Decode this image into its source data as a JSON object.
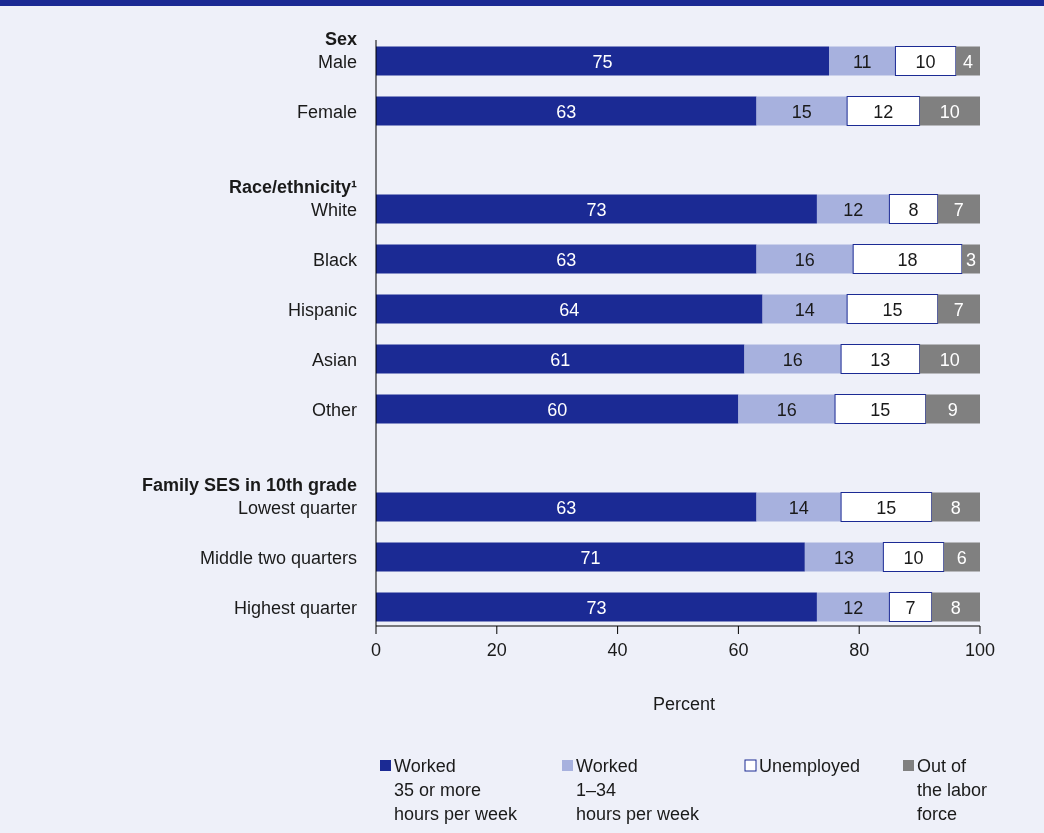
{
  "chart_data": {
    "type": "bar",
    "orientation": "horizontal",
    "stacked": true,
    "xlabel": "Percent",
    "xlim": [
      0,
      100
    ],
    "xticks": [
      0,
      20,
      40,
      60,
      80,
      100
    ],
    "legend": "bottom",
    "data_labels": true,
    "categories": [
      "Sex",
      "Male",
      "Female",
      "Race/ethnicity¹",
      "White",
      "Black",
      "Hispanic",
      "Asian",
      "Other",
      "Family SES in 10th grade",
      "Lowest quarter",
      "Middle two quarters",
      "Highest quarter"
    ],
    "series": [
      {
        "name": "Worked\n35 or more\nhours per week",
        "color": "#1b2a94",
        "values": [
          null,
          75,
          63,
          null,
          73,
          63,
          64,
          61,
          60,
          null,
          63,
          71,
          73
        ]
      },
      {
        "name": "Worked\n1–34\nhours per week",
        "color": "#a7b1de",
        "values": [
          null,
          11,
          15,
          null,
          12,
          16,
          14,
          16,
          16,
          null,
          14,
          13,
          12
        ]
      },
      {
        "name": "Unemployed",
        "color": "#ffffff",
        "values": [
          null,
          10,
          12,
          null,
          8,
          18,
          15,
          13,
          15,
          null,
          15,
          10,
          7
        ]
      },
      {
        "name": "Out of\nthe labor\nforce",
        "color": "#808080",
        "values": [
          null,
          4,
          10,
          null,
          7,
          3,
          7,
          10,
          9,
          null,
          8,
          6,
          8
        ]
      }
    ]
  }
}
